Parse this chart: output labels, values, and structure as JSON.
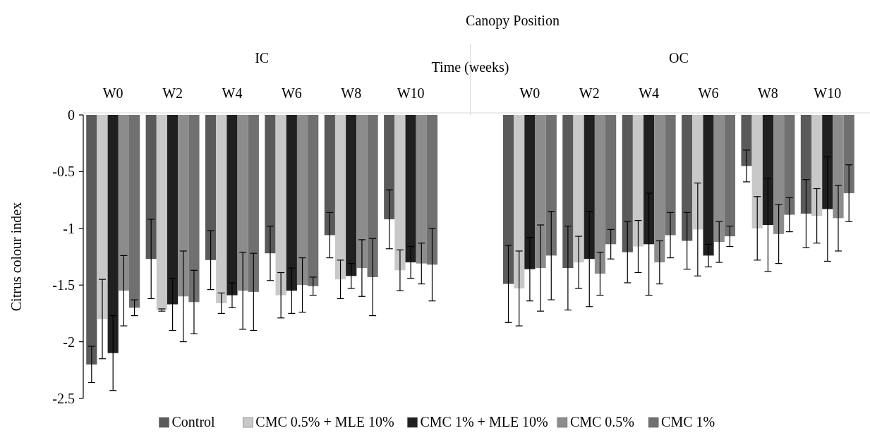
{
  "chart_data": {
    "type": "bar",
    "title": "Canopy Position",
    "xlabel": "Time (weeks)",
    "ylabel": "Citrus colour index",
    "annotations": [
      "IC",
      "OC"
    ],
    "categories": [
      "W0",
      "W2",
      "W4",
      "W6",
      "W8",
      "W10",
      null,
      "W0",
      "W2",
      "W4",
      "W6",
      "W8",
      "W10"
    ],
    "series": [
      {
        "name": "Control",
        "color": "#5a5a5a",
        "values": [
          -2.2,
          -1.27,
          -1.28,
          -1.22,
          -1.06,
          -0.92,
          null,
          -1.49,
          -1.35,
          -1.21,
          -1.11,
          -0.45,
          -0.87
        ],
        "errors": [
          0.16,
          0.35,
          0.26,
          0.24,
          0.2,
          0.26,
          null,
          0.34,
          0.37,
          0.27,
          0.25,
          0.14,
          0.3
        ]
      },
      {
        "name": "CMC 0.5% + MLE 10%",
        "color": "#c8c8c8",
        "values": [
          -1.8,
          -1.72,
          -1.66,
          -1.59,
          -1.45,
          -1.37,
          null,
          -1.53,
          -1.3,
          -1.16,
          -1.01,
          -1.0,
          -0.89
        ],
        "errors": [
          0.35,
          0.01,
          0.09,
          0.2,
          0.17,
          0.18,
          null,
          0.33,
          0.23,
          0.23,
          0.41,
          0.28,
          0.24
        ]
      },
      {
        "name": "CMC 1% + MLE 10%",
        "color": "#202020",
        "values": [
          -2.1,
          -1.67,
          -1.59,
          -1.55,
          -1.42,
          -1.3,
          null,
          -1.36,
          -1.27,
          -1.14,
          -1.24,
          -0.97,
          -0.83
        ],
        "errors": [
          0.33,
          0.23,
          0.11,
          0.2,
          0.11,
          0.14,
          null,
          0.28,
          0.42,
          0.45,
          0.1,
          0.41,
          0.46
        ]
      },
      {
        "name": "CMC 0.5%",
        "color": "#8c8c8c",
        "values": [
          -1.55,
          -1.6,
          -1.55,
          -1.5,
          -1.35,
          -1.31,
          null,
          -1.35,
          -1.4,
          -1.3,
          -1.12,
          -1.05,
          -0.91
        ],
        "errors": [
          0.31,
          0.4,
          0.34,
          0.24,
          0.25,
          0.18,
          null,
          0.38,
          0.19,
          0.19,
          0.18,
          0.26,
          0.29
        ]
      },
      {
        "name": "CMC 1%",
        "color": "#707070",
        "values": [
          -1.7,
          -1.65,
          -1.56,
          -1.51,
          -1.43,
          -1.32,
          null,
          -1.24,
          -1.14,
          -1.06,
          -1.07,
          -0.88,
          -0.69
        ],
        "errors": [
          0.07,
          0.28,
          0.34,
          0.08,
          0.34,
          0.32,
          null,
          0.39,
          0.13,
          0.2,
          0.09,
          0.15,
          0.25
        ]
      }
    ],
    "ylim": [
      -2.5,
      0
    ],
    "yticks": [
      -2.5,
      -2,
      -1.5,
      -1,
      -0.5,
      0
    ],
    "grid": false,
    "legend": "bottom"
  }
}
